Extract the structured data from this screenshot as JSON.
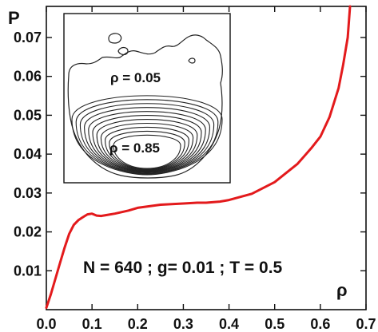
{
  "chart_data": {
    "type": "line",
    "xlabel": "ρ",
    "ylabel": "P",
    "xlim": [
      0.0,
      0.7
    ],
    "ylim": [
      0.0,
      0.078
    ],
    "x_ticks": [
      0.0,
      0.1,
      0.2,
      0.3,
      0.4,
      0.5,
      0.6,
      0.7
    ],
    "y_ticks": [
      0.01,
      0.02,
      0.03,
      0.04,
      0.05,
      0.06,
      0.07
    ],
    "x_tick_labels": [
      "0.0",
      "0.1",
      "0.2",
      "0.3",
      "0.4",
      "0.5",
      "0.6",
      "0.7"
    ],
    "y_tick_labels": [
      "0.01",
      "0.02",
      "0.03",
      "0.04",
      "0.05",
      "0.06",
      "0.07"
    ],
    "grid": false,
    "series": [
      {
        "color": "#e31a1c",
        "x": [
          0.0,
          0.01,
          0.02,
          0.03,
          0.04,
          0.05,
          0.06,
          0.07,
          0.08,
          0.09,
          0.1,
          0.11,
          0.12,
          0.13,
          0.15,
          0.18,
          0.2,
          0.25,
          0.3,
          0.33,
          0.35,
          0.38,
          0.4,
          0.45,
          0.5,
          0.55,
          0.58,
          0.6,
          0.62,
          0.64,
          0.65,
          0.66,
          0.665
        ],
        "y": [
          0.0005,
          0.004,
          0.008,
          0.012,
          0.016,
          0.0195,
          0.0218,
          0.023,
          0.0238,
          0.0245,
          0.0247,
          0.0242,
          0.0241,
          0.0243,
          0.0247,
          0.0255,
          0.0262,
          0.027,
          0.0273,
          0.0275,
          0.0275,
          0.0278,
          0.0282,
          0.0298,
          0.0328,
          0.0375,
          0.0415,
          0.0445,
          0.0495,
          0.057,
          0.063,
          0.07,
          0.078
        ]
      }
    ],
    "annotation": "N = 640 ; g= 0.01 ; T = 0.5",
    "inset": {
      "labels": [
        "ρ = 0.05",
        "ρ = 0.85"
      ]
    }
  }
}
